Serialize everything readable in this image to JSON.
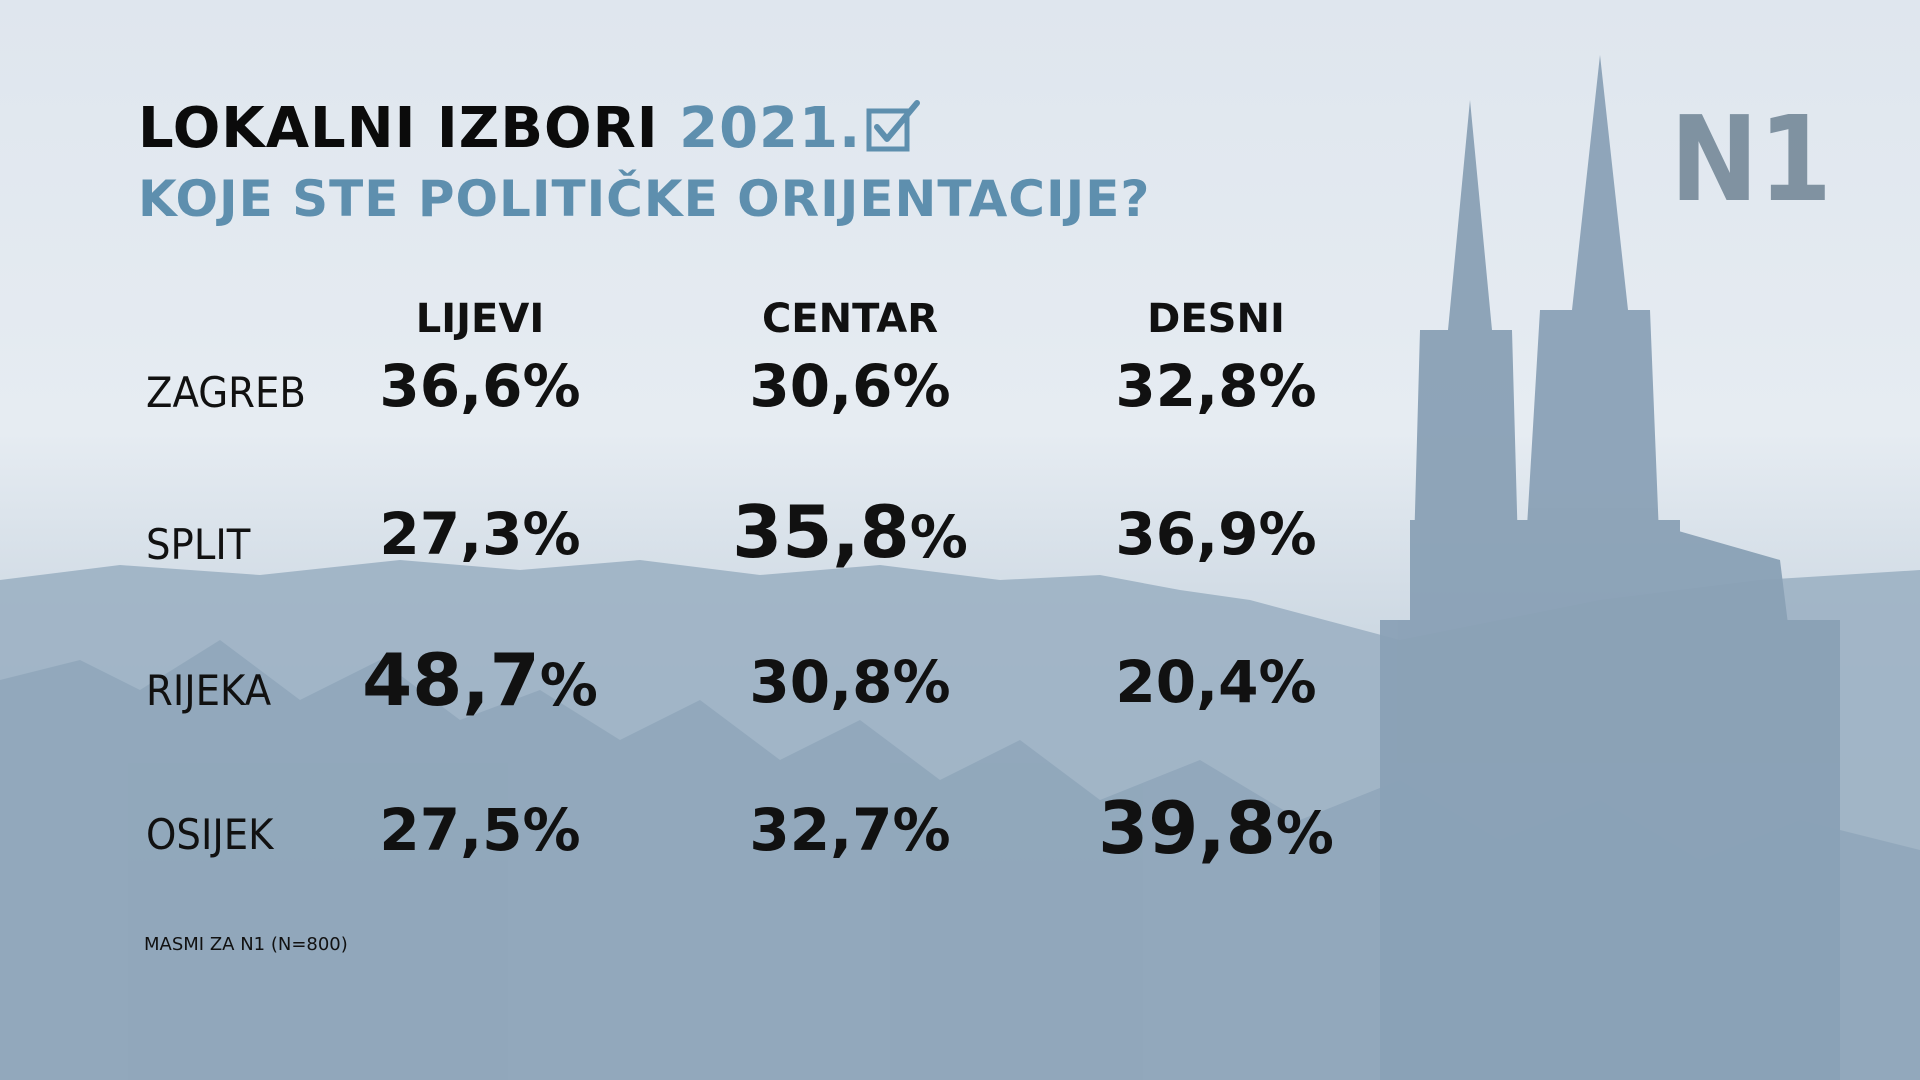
{
  "header": {
    "title": "LOKALNI IZBORI",
    "year": "2021.",
    "subtitle": "KOJE STE POLITIČKE ORIJENTACIJE?",
    "logo": "N1"
  },
  "source": "MASMI ZA N1 (N=800)",
  "colors": {
    "accent": "#5e8fae",
    "text": "#111111",
    "logo": "#6f8494"
  },
  "chart_data": {
    "type": "table",
    "title": "KOJE STE POLITIČKE ORIJENTACIJE?",
    "columns": [
      "LIJEVI",
      "CENTAR",
      "DESNI"
    ],
    "rows": [
      {
        "label": "ZAGREB",
        "values": [
          "36,6%",
          "30,6%",
          "32,8%"
        ],
        "highlight": null
      },
      {
        "label": "SPLIT",
        "values": [
          "27,3%",
          "35,8%",
          "36,9%"
        ],
        "highlight": 1
      },
      {
        "label": "RIJEKA",
        "values": [
          "48,7%",
          "30,8%",
          "20,4%"
        ],
        "highlight": 0
      },
      {
        "label": "OSIJEK",
        "values": [
          "27,5%",
          "32,7%",
          "39,8%"
        ],
        "highlight": 2
      }
    ]
  }
}
